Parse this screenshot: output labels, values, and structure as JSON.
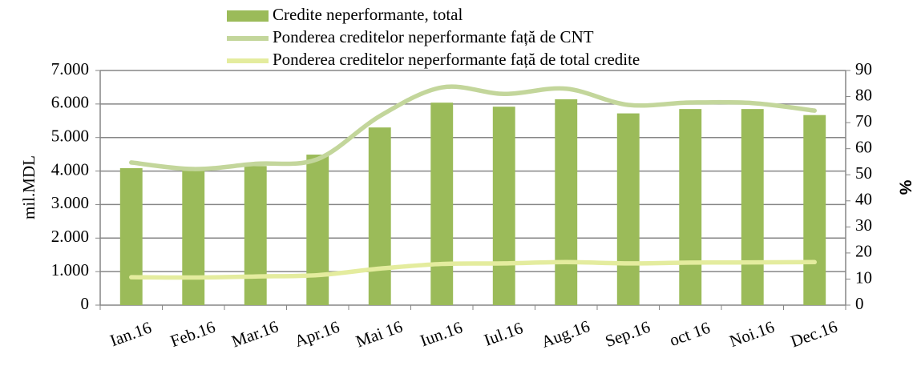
{
  "chart_data": {
    "type": "bar",
    "categories": [
      "Ian.16",
      "Feb.16",
      "Mar.16",
      "Apr.16",
      "Mai 16",
      "Iun.16",
      "Iul.16",
      "Aug.16",
      "Sep.16",
      "oct 16",
      "Noi.16",
      "Dec.16"
    ],
    "y_label": "mil.MDL",
    "y2_label": "%",
    "series": [
      {
        "name": "Credite neperformante, total",
        "type": "bar",
        "color": "#9bbb59",
        "values": [
          4085,
          4050,
          4150,
          4490,
          5300,
          6040,
          5920,
          6140,
          5720,
          5850,
          5850,
          5670
        ]
      },
      {
        "name": "Ponderea creditelor neperformante față de CNT",
        "type": "line",
        "axis": "y2",
        "color": "#c3d69b",
        "values": [
          54.7,
          52.2,
          54.2,
          56,
          72.5,
          83.5,
          81,
          83,
          76.8,
          77.7,
          77.5,
          74.6
        ]
      },
      {
        "name": "Ponderea creditelor neperformante față de total credite",
        "type": "line",
        "axis": "y2",
        "color": "#e4ec9e",
        "values": [
          10.7,
          10.6,
          11,
          11.5,
          14,
          15.8,
          16,
          16.5,
          16,
          16.3,
          16.4,
          16.5
        ]
      }
    ],
    "ylim": [
      0,
      7000
    ],
    "yticks": [
      0,
      {
        "value": 1000,
        "label": "1.000"
      },
      {
        "value": 2000,
        "label": "2.000"
      },
      {
        "value": 3000,
        "label": "3.000"
      },
      {
        "value": 4000,
        "label": "4.000"
      },
      {
        "value": 5000,
        "label": "5.000"
      },
      {
        "value": 6000,
        "label": "6.000"
      },
      {
        "value": 7000,
        "label": "7.000"
      }
    ],
    "y2lim": [
      0,
      90
    ],
    "y2ticks": [
      0,
      10,
      20,
      30,
      40,
      50,
      60,
      70,
      80,
      90
    ],
    "grid": true,
    "legend": "top"
  }
}
